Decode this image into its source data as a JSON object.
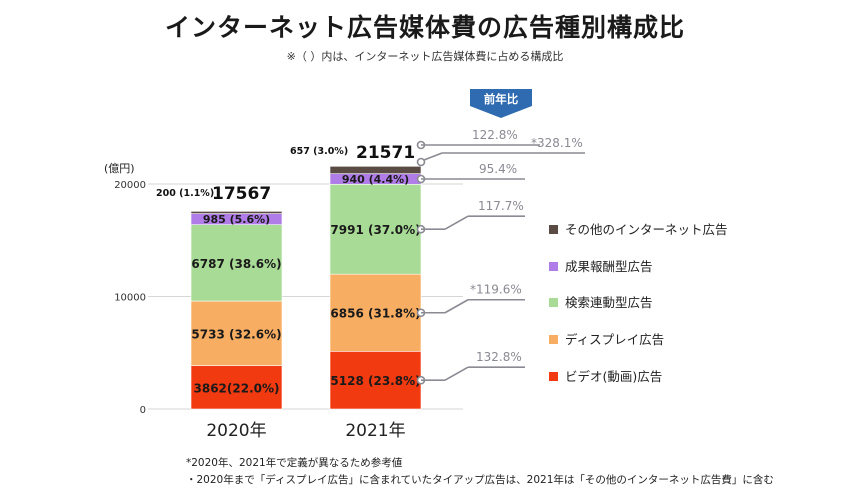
{
  "title": "インターネット広告媒体費の広告種別構成比",
  "subtitle": "※（ ）内は、インターネット広告媒体費に占める構成比",
  "notes": [
    "*2020年、2021年で定義が異なるため参考値",
    "・2020年まで「ディスプレイ広告」に含まれていたタイアップ広告は、2021年は「その他のインターネット広告費」に含む"
  ],
  "chart_data": {
    "type": "bar",
    "stacked": true,
    "categories": [
      "2020年",
      "2021年"
    ],
    "ylabel": "(億円)",
    "ylim": [
      0,
      20000
    ],
    "yticks": [
      0,
      10000,
      20000
    ],
    "ytick_labels": [
      "0",
      "10000",
      "20000"
    ],
    "totals": [
      17567,
      21571
    ],
    "total_labels": [
      "17567",
      "21571"
    ],
    "yoy_badge": "前年比",
    "series": [
      {
        "name": "ビデオ(動画)広告",
        "color": "#f23a10",
        "values": [
          3862,
          5128
        ],
        "labels": [
          "3862(22.0%)",
          "5128 (23.8%)"
        ],
        "yoy": "132.8%"
      },
      {
        "name": "ディスプレイ広告",
        "color": "#f7ad62",
        "values": [
          5733,
          6856
        ],
        "labels": [
          "5733 (32.6%)",
          "6856 (31.8%)"
        ],
        "yoy": "*119.6%"
      },
      {
        "name": "検索連動型広告",
        "color": "#a8dc96",
        "values": [
          6787,
          7991
        ],
        "labels": [
          "6787 (38.6%)",
          "7991 (37.0%)"
        ],
        "yoy": "117.7%"
      },
      {
        "name": "成果報酬型広告",
        "color": "#b07de8",
        "values": [
          985,
          940
        ],
        "labels": [
          "985 (5.6%)",
          "940 (4.4%)"
        ],
        "yoy": "95.4%"
      },
      {
        "name": "その他のインターネット広告",
        "color": "#5a4b45",
        "values": [
          200,
          657
        ],
        "labels": [
          "200 (1.1%)",
          "657 (3.0%)"
        ],
        "yoy": "*328.1%"
      }
    ],
    "total_yoy": "122.8%",
    "colors": {
      "leader": "#8a8a93",
      "yoy_text": "#8a8a93",
      "badge": "#2f6bb0",
      "grid": "#d6d6d6"
    }
  }
}
